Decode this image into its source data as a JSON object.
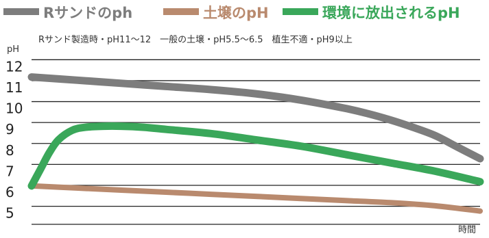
{
  "chart_data": {
    "type": "line",
    "legend": [
      {
        "key": "rsand",
        "label": "Rサンドのph",
        "color": "#7d7d7d"
      },
      {
        "key": "soil",
        "label": "土壌のpH",
        "color": "#b98a6e"
      },
      {
        "key": "env",
        "label": "環境に放出されるpH",
        "color": "#3aa75a"
      }
    ],
    "note": "Rサンド製造時・pH11～12　一般の土壌・pH5.5～6.5　植生不適・pH9以上",
    "ylabel": "pH",
    "xlabel": "時間",
    "yticks": [
      "12",
      "11",
      "10",
      "9",
      "8",
      "7",
      "6",
      "5"
    ],
    "ylim": [
      4.4,
      12.5
    ],
    "xlim": [
      0,
      100
    ],
    "series": [
      {
        "name": "Rサンドのph",
        "color": "#7d7d7d",
        "x": [
          0,
          10,
          20,
          30,
          40,
          50,
          60,
          70,
          75,
          80,
          85,
          90,
          95,
          100
        ],
        "y": [
          11.5,
          11.35,
          11.2,
          11.05,
          10.9,
          10.7,
          10.4,
          10.0,
          9.75,
          9.45,
          9.1,
          8.7,
          8.15,
          7.6
        ]
      },
      {
        "name": "土壌のpH",
        "color": "#b98a6e",
        "x": [
          0,
          10,
          20,
          30,
          40,
          50,
          60,
          70,
          80,
          90,
          100
        ],
        "y": [
          6.3,
          6.2,
          6.1,
          6.0,
          5.9,
          5.8,
          5.7,
          5.6,
          5.5,
          5.35,
          5.1
        ]
      },
      {
        "name": "環境に放出されるpH",
        "color": "#3aa75a",
        "x": [
          0,
          2,
          4,
          6,
          9,
          12,
          16,
          20,
          25,
          30,
          40,
          50,
          60,
          70,
          80,
          90,
          100
        ],
        "y": [
          6.3,
          7.1,
          7.9,
          8.5,
          8.95,
          9.1,
          9.15,
          9.15,
          9.1,
          9.0,
          8.8,
          8.5,
          8.2,
          7.8,
          7.4,
          7.0,
          6.5
        ]
      }
    ]
  }
}
